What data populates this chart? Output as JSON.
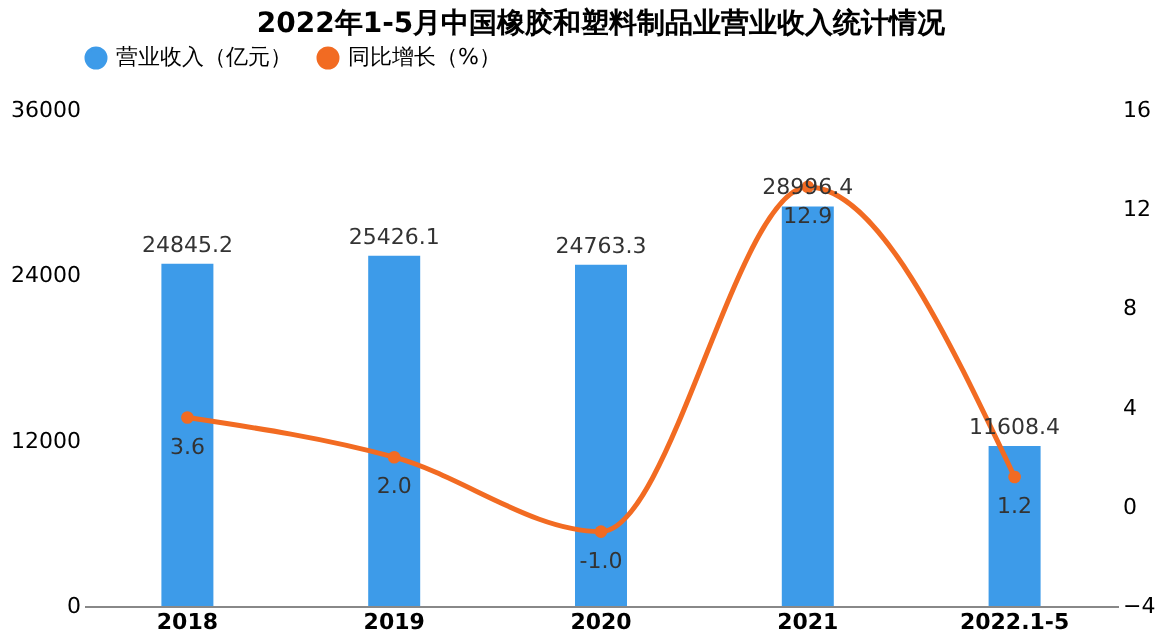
{
  "chart_data": {
    "type": "bar",
    "title": "2022年1-5月中国橡胶和塑料制品业营业收入统计情况",
    "categories": [
      "2018",
      "2019",
      "2020",
      "2021",
      "2022.1-5"
    ],
    "series": [
      {
        "name": "营业收入（亿元）",
        "color": "#3d9be9",
        "values": [
          24845.2,
          25426.1,
          24763.3,
          28996.4,
          11608.4
        ]
      },
      {
        "name": "同比增长（%）",
        "type": "line",
        "axis": "y2",
        "color": "#f26b22",
        "values": [
          3.6,
          2.0,
          -1.0,
          12.9,
          1.2
        ],
        "value_labels": [
          "3.6",
          "2.0",
          "-1.0",
          "12.9",
          "1.2"
        ]
      }
    ],
    "ylim": [
      0,
      36000
    ],
    "yticks": [
      0,
      12000,
      24000,
      36000
    ],
    "y2lim": [
      -4,
      16
    ],
    "y2ticks": [
      -4,
      0,
      4,
      8,
      12,
      16
    ],
    "data_labels": true,
    "grid": false,
    "legend": "top",
    "marker": "circle"
  }
}
